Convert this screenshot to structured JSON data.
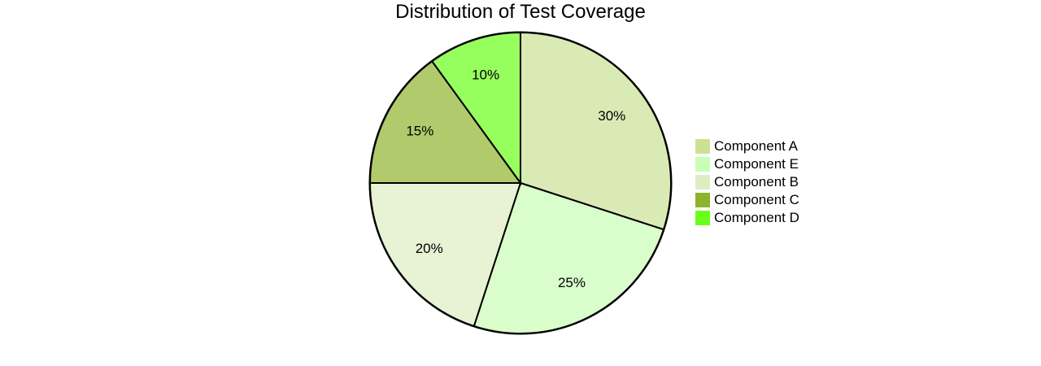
{
  "chart_data": {
    "type": "pie",
    "title": "Distribution of Test Coverage",
    "categories": [
      "Component A",
      "Component E",
      "Component B",
      "Component C",
      "Component D"
    ],
    "values": [
      30,
      25,
      20,
      15,
      10
    ],
    "labels": [
      "30%",
      "25%",
      "20%",
      "15%",
      "10%"
    ],
    "colors": [
      "#cbe195",
      "#c9feb5",
      "#deecc2",
      "#8eb32e",
      "#69ff1a"
    ],
    "slice_opacity": 0.7,
    "legend_position": "right",
    "start_angle_deg": 0,
    "direction": "clockwise"
  },
  "legend": {
    "items": [
      {
        "label": "Component A",
        "color": "#cbe195"
      },
      {
        "label": "Component E",
        "color": "#c9feb5"
      },
      {
        "label": "Component B",
        "color": "#deecc2"
      },
      {
        "label": "Component C",
        "color": "#8eb32e"
      },
      {
        "label": "Component D",
        "color": "#69ff1a"
      }
    ]
  }
}
